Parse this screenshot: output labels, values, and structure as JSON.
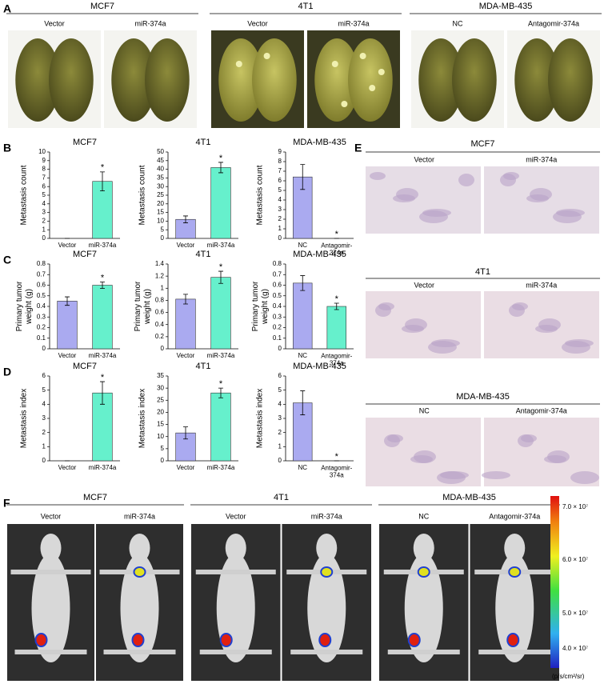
{
  "panel_letters": [
    "A",
    "B",
    "C",
    "D",
    "E",
    "F"
  ],
  "panel_a": {
    "groups": [
      {
        "title": "MCF7",
        "labels": [
          "Vector",
          "miR-374a"
        ]
      },
      {
        "title": "4T1",
        "labels": [
          "Vector",
          "miR-374a"
        ]
      },
      {
        "title": "MDA-MB-435",
        "labels": [
          "NC",
          "Antagomir-374a"
        ]
      }
    ]
  },
  "panel_e": {
    "groups": [
      {
        "title": "MCF7",
        "labels": [
          "Vector",
          "miR-374a"
        ]
      },
      {
        "title": "4T1",
        "labels": [
          "Vector",
          "miR-374a"
        ]
      },
      {
        "title": "MDA-MB-435",
        "labels": [
          "NC",
          "Antagomir-374a"
        ]
      }
    ]
  },
  "panel_f": {
    "groups": [
      {
        "title": "MCF7",
        "labels": [
          "Vector",
          "miR-374a"
        ]
      },
      {
        "title": "4T1",
        "labels": [
          "Vector",
          "miR-374a"
        ]
      },
      {
        "title": "MDA-MB-435",
        "labels": [
          "NC",
          "Antagomir-374a"
        ]
      }
    ],
    "colorbar": {
      "labels": [
        "7.0 × 10⁷",
        "6.0 × 10⁷",
        "5.0 × 10⁷",
        "4.0 × 10⁷"
      ],
      "unit": "(p/s/cm²/sr)"
    }
  },
  "chart_data": [
    {
      "type": "bar",
      "title": "MCF7",
      "y_label": "Metastasis count",
      "categories": [
        "Vector",
        "miR-374a"
      ],
      "values": [
        0,
        6.6
      ],
      "errors": [
        0,
        1.1
      ],
      "significance": [
        null,
        "*"
      ],
      "colors": [
        "#aaaaf0",
        "#66f0cc"
      ],
      "ylim": [
        0,
        10
      ],
      "yticks": [
        0,
        1,
        2,
        3,
        4,
        5,
        6,
        7,
        8,
        9,
        10
      ]
    },
    {
      "type": "bar",
      "title": "4T1",
      "y_label": "Metastasis count",
      "categories": [
        "Vector",
        "miR-374a"
      ],
      "values": [
        11,
        41
      ],
      "errors": [
        2,
        3
      ],
      "significance": [
        null,
        "*"
      ],
      "colors": [
        "#aaaaf0",
        "#66f0cc"
      ],
      "ylim": [
        0,
        50
      ],
      "yticks": [
        0,
        5,
        10,
        15,
        20,
        25,
        30,
        35,
        40,
        45,
        50
      ]
    },
    {
      "type": "bar",
      "title": "MDA-MB-435",
      "y_label": "Metastasis count",
      "categories": [
        "NC",
        "Antagomir-374a"
      ],
      "values": [
        6.4,
        0
      ],
      "errors": [
        1.3,
        0
      ],
      "significance": [
        null,
        "*"
      ],
      "colors": [
        "#aaaaf0",
        "#66f0cc"
      ],
      "ylim": [
        0,
        9
      ],
      "yticks": [
        0,
        1,
        2,
        3,
        4,
        5,
        6,
        7,
        8,
        9
      ]
    },
    {
      "type": "bar",
      "title": "MCF7",
      "y_label": "Primary tumor weight (g)",
      "categories": [
        "Vector",
        "miR-374a"
      ],
      "values": [
        0.45,
        0.6
      ],
      "errors": [
        0.04,
        0.03
      ],
      "significance": [
        null,
        "*"
      ],
      "colors": [
        "#aaaaf0",
        "#66f0cc"
      ],
      "ylim": [
        0,
        0.8
      ],
      "yticks": [
        0,
        0.1,
        0.2,
        0.3,
        0.4,
        0.5,
        0.6,
        0.7,
        0.8
      ]
    },
    {
      "type": "bar",
      "title": "4T1",
      "y_label": "Primary tumor weight (g)",
      "categories": [
        "Vector",
        "miR-374a"
      ],
      "values": [
        0.82,
        1.18
      ],
      "errors": [
        0.08,
        0.1
      ],
      "significance": [
        null,
        "*"
      ],
      "colors": [
        "#aaaaf0",
        "#66f0cc"
      ],
      "ylim": [
        0,
        1.4
      ],
      "yticks": [
        0,
        0.2,
        0.4,
        0.6,
        0.8,
        1.0,
        1.2,
        1.4
      ]
    },
    {
      "type": "bar",
      "title": "MDA-MB-435",
      "y_label": "Primary tumor weight (g)",
      "categories": [
        "NC",
        "Antagomir-374a"
      ],
      "values": [
        0.62,
        0.4
      ],
      "errors": [
        0.07,
        0.03
      ],
      "significance": [
        null,
        "*"
      ],
      "colors": [
        "#aaaaf0",
        "#66f0cc"
      ],
      "ylim": [
        0,
        0.8
      ],
      "yticks": [
        0,
        0.1,
        0.2,
        0.3,
        0.4,
        0.5,
        0.6,
        0.7,
        0.8
      ]
    },
    {
      "type": "bar",
      "title": "MCF7",
      "y_label": "Metastasis index",
      "categories": [
        "Vector",
        "miR-374a"
      ],
      "values": [
        0,
        4.8
      ],
      "errors": [
        0,
        0.8
      ],
      "significance": [
        null,
        "*"
      ],
      "colors": [
        "#aaaaf0",
        "#66f0cc"
      ],
      "ylim": [
        0,
        6
      ],
      "yticks": [
        0,
        1,
        2,
        3,
        4,
        5,
        6
      ]
    },
    {
      "type": "bar",
      "title": "4T1",
      "y_label": "Metastasis index",
      "categories": [
        "Vector",
        "miR-374a"
      ],
      "values": [
        11.5,
        28
      ],
      "errors": [
        2.5,
        2
      ],
      "significance": [
        null,
        "*"
      ],
      "colors": [
        "#aaaaf0",
        "#66f0cc"
      ],
      "ylim": [
        0,
        35
      ],
      "yticks": [
        0,
        5,
        10,
        15,
        20,
        25,
        30,
        35
      ]
    },
    {
      "type": "bar",
      "title": "MDA-MB-435",
      "y_label": "Metastasis index",
      "categories": [
        "NC",
        "Antagomir-374a"
      ],
      "values": [
        4.1,
        0
      ],
      "errors": [
        0.85,
        0
      ],
      "significance": [
        null,
        "*"
      ],
      "colors": [
        "#aaaaf0",
        "#66f0cc"
      ],
      "ylim": [
        0,
        6
      ],
      "yticks": [
        0,
        1,
        2,
        3,
        4,
        5,
        6
      ]
    }
  ]
}
